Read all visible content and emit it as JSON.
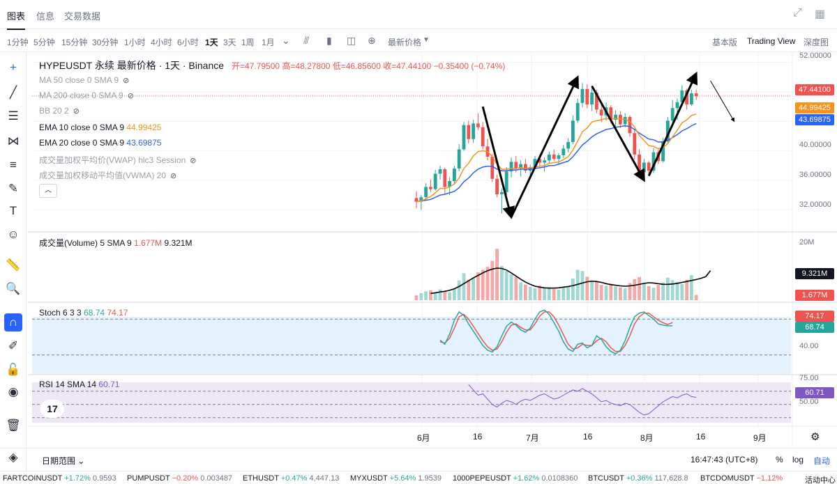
{
  "tabs": [
    "图表",
    "信息",
    "交易数据"
  ],
  "toolbar": {
    "timeframes": [
      "1分钟",
      "5分钟",
      "15分钟",
      "30分钟",
      "1小时",
      "4小时",
      "6小时",
      "1天",
      "3天",
      "1周",
      "1月"
    ],
    "active_timeframe": "1天",
    "price_type": "最新价格",
    "views": [
      "基本版",
      "Trading View",
      "深度图"
    ],
    "active_view": "Trading View"
  },
  "symbol": {
    "title": "HYPEUSDT 永续 最新价格 · 1天 · Binance",
    "open": "开=47.79500",
    "high": "高=48.27800",
    "low": "低=46.85600",
    "close": "收=47.44100",
    "change": "−0.35400 (−0.74%)"
  },
  "indicators": [
    {
      "label": "MA 50 close 0 SMA 9",
      "value": ""
    },
    {
      "label": "MA 200 close 0 SMA 9",
      "value": ""
    },
    {
      "label": "BB 20 2",
      "value": ""
    },
    {
      "label": "EMA 10 close 0 SMA 9",
      "value": "44.99425"
    },
    {
      "label": "EMA 20 close 0 SMA 9",
      "value": "43.69875"
    },
    {
      "label": "成交量加权平均价(VWAP) hlc3 Session",
      "value": ""
    },
    {
      "label": "成交量加权移动平均值(VWMA) 20",
      "value": ""
    }
  ],
  "price_axis": {
    "labels": [
      "52.00000",
      "48.00000",
      "44.00000",
      "40.00000",
      "36.00000",
      "32.00000"
    ]
  },
  "price_tags": {
    "last": "47.44100",
    "ema10": "44.99425",
    "ema20": "43.69875"
  },
  "volume_pane": {
    "label": "成交量(Volume)",
    "params": "5 SMA 9",
    "val1": "1.677M",
    "val2": "9.321M",
    "axis_top": "20M",
    "tag_sma": "9.321M",
    "tag_vol": "1.677M"
  },
  "stoch_pane": {
    "label": "Stoch 6 3 3",
    "k": "68.74",
    "d": "74.17",
    "axis_mid": "40.00",
    "tag_d": "74.17",
    "tag_k": "68.74"
  },
  "rsi_pane": {
    "label": "RSI 14 SMA 14",
    "value": "60.71",
    "axis_top": "75.00",
    "axis_mid": "50.00",
    "tag": "60.71"
  },
  "x_axis": [
    "6月",
    "16",
    "7月",
    "16",
    "8月",
    "16",
    "9月"
  ],
  "bottom": {
    "date_range": "日期范围",
    "time": "16:47:43 (UTC+8)",
    "percent": "%",
    "log": "log",
    "auto": "自动"
  },
  "tickers": [
    {
      "name": "FARTCOINUSDT",
      "chg": "+1.72%",
      "dir": "up",
      "px": "0.9593"
    },
    {
      "name": "PUMPUSDT",
      "chg": "−0.20%",
      "dir": "dn",
      "px": "0.003487"
    },
    {
      "name": "ETHUSDT",
      "chg": "+0.47%",
      "dir": "up",
      "px": "4,447.13"
    },
    {
      "name": "MYXUSDT",
      "chg": "+5.64%",
      "dir": "up",
      "px": "1.9539"
    },
    {
      "name": "1000PEPEUSDT",
      "chg": "+1.62%",
      "dir": "up",
      "px": "0.0108360"
    },
    {
      "name": "BTCUSDT",
      "chg": "+0.36%",
      "dir": "up",
      "px": "117,628.8"
    },
    {
      "name": "BTCDOMUSDT",
      "chg": "−1.12%",
      "dir": "dn",
      "px": ""
    },
    {
      "name": "活动中心",
      "chg": "",
      "dir": "up",
      "px": ""
    }
  ],
  "colors": {
    "up": "#26a69a",
    "down": "#ef5350",
    "ema10": "#f7931a",
    "ema20": "#2962ff",
    "stoch_k": "#26a69a",
    "stoch_d": "#ef5350",
    "rsi": "#7e57c2",
    "last_price": "#ef5350"
  },
  "chart_data": {
    "type": "candlestick",
    "period": "1D",
    "x_range": [
      "2025-05-23",
      "2025-08-15"
    ],
    "ylim": [
      29,
      53
    ],
    "candles": [
      [
        33.6,
        34.5,
        32.2,
        33.1
      ],
      [
        33.1,
        34.0,
        32.0,
        33.7
      ],
      [
        33.7,
        35.6,
        33.2,
        35.1
      ],
      [
        35.1,
        36.1,
        34.4,
        34.8
      ],
      [
        34.8,
        37.4,
        34.6,
        36.9
      ],
      [
        36.9,
        38.0,
        36.1,
        37.5
      ],
      [
        37.5,
        37.7,
        34.2,
        35.1
      ],
      [
        35.1,
        36.4,
        34.0,
        35.9
      ],
      [
        35.9,
        38.0,
        35.5,
        37.6
      ],
      [
        37.6,
        40.9,
        37.2,
        40.2
      ],
      [
        40.2,
        43.9,
        40.0,
        43.5
      ],
      [
        43.5,
        44.1,
        41.0,
        41.6
      ],
      [
        41.6,
        44.2,
        41.1,
        43.7
      ],
      [
        43.7,
        45.1,
        42.8,
        43.2
      ],
      [
        43.2,
        43.9,
        40.2,
        40.6
      ],
      [
        40.6,
        41.6,
        38.7,
        39.2
      ],
      [
        39.2,
        39.6,
        35.8,
        36.2
      ],
      [
        36.2,
        36.8,
        33.7,
        34.1
      ],
      [
        34.1,
        34.9,
        31.5,
        34.4
      ],
      [
        34.4,
        37.8,
        34.0,
        37.2
      ],
      [
        37.2,
        39.1,
        36.4,
        38.5
      ],
      [
        38.5,
        39.3,
        37.1,
        37.6
      ],
      [
        37.6,
        38.7,
        36.5,
        38.2
      ],
      [
        38.2,
        38.9,
        37.0,
        37.3
      ],
      [
        37.3,
        38.1,
        36.4,
        37.8
      ],
      [
        37.8,
        39.3,
        37.6,
        38.9
      ],
      [
        38.9,
        39.5,
        37.9,
        38.4
      ],
      [
        38.4,
        39.1,
        37.2,
        38.7
      ],
      [
        38.7,
        39.9,
        38.3,
        39.5
      ],
      [
        39.5,
        40.2,
        38.6,
        38.9
      ],
      [
        38.9,
        39.7,
        38.1,
        39.4
      ],
      [
        39.4,
        40.8,
        39.0,
        40.3
      ],
      [
        40.3,
        41.7,
        39.8,
        41.2
      ],
      [
        41.2,
        44.8,
        40.9,
        44.1
      ],
      [
        44.1,
        47.1,
        43.8,
        46.5
      ],
      [
        46.5,
        49.2,
        45.9,
        48.4
      ],
      [
        48.4,
        49.0,
        45.8,
        46.3
      ],
      [
        46.3,
        48.6,
        45.4,
        47.9
      ],
      [
        47.9,
        48.3,
        45.1,
        45.6
      ],
      [
        45.6,
        46.4,
        43.9,
        44.8
      ],
      [
        44.8,
        46.6,
        44.1,
        45.9
      ],
      [
        45.9,
        46.2,
        43.7,
        44.2
      ],
      [
        44.2,
        45.5,
        43.3,
        44.9
      ],
      [
        44.9,
        45.4,
        43.1,
        43.6
      ],
      [
        43.6,
        45.1,
        43.2,
        44.6
      ],
      [
        44.6,
        44.8,
        41.9,
        42.4
      ],
      [
        42.4,
        42.9,
        38.8,
        39.5
      ],
      [
        39.5,
        40.2,
        36.4,
        37.1
      ],
      [
        37.1,
        38.9,
        36.4,
        38.4
      ],
      [
        38.4,
        38.6,
        36.7,
        37.3
      ],
      [
        37.3,
        40.4,
        37.0,
        39.8
      ],
      [
        39.8,
        40.2,
        38.2,
        38.6
      ],
      [
        38.6,
        41.8,
        38.4,
        41.3
      ],
      [
        41.3,
        44.6,
        41.0,
        44.1
      ],
      [
        44.1,
        46.9,
        43.7,
        45.8
      ],
      [
        45.8,
        47.1,
        44.2,
        46.6
      ],
      [
        46.6,
        48.9,
        46.1,
        48.2
      ],
      [
        48.2,
        48.4,
        45.6,
        46.3
      ],
      [
        46.3,
        48.3,
        46.1,
        47.8
      ],
      [
        47.8,
        48.3,
        46.9,
        47.4
      ]
    ],
    "ema10": [
      33.1,
      33.2,
      33.5,
      33.8,
      34.3,
      34.9,
      34.9,
      35.1,
      35.5,
      36.3,
      37.6,
      38.3,
      39.3,
      39.9,
      40.0,
      39.9,
      39.2,
      38.2,
      37.5,
      37.5,
      37.6,
      37.6,
      37.7,
      37.6,
      37.7,
      37.8,
      37.9,
      38.0,
      38.3,
      38.4,
      38.5,
      38.8,
      39.2,
      40.1,
      41.3,
      42.6,
      43.1,
      43.9,
      44.1,
      44.2,
      44.4,
      44.3,
      44.4,
      44.3,
      44.3,
      44.0,
      43.2,
      42.1,
      41.4,
      40.7,
      40.6,
      40.3,
      40.4,
      41.0,
      41.9,
      42.8,
      43.8,
      44.2,
      44.8,
      45.0
    ],
    "ema20": [
      33.1,
      33.2,
      33.3,
      33.4,
      33.7,
      34.0,
      34.1,
      34.3,
      34.5,
      35.0,
      35.8,
      36.3,
      37.0,
      37.5,
      37.8,
      37.9,
      37.9,
      37.5,
      37.3,
      37.3,
      37.4,
      37.4,
      37.5,
      37.5,
      37.5,
      37.6,
      37.7,
      37.8,
      38.0,
      38.0,
      38.2,
      38.4,
      38.6,
      39.2,
      40.0,
      40.8,
      41.3,
      41.9,
      42.3,
      42.6,
      42.9,
      43.0,
      43.2,
      43.3,
      43.4,
      43.3,
      42.9,
      42.4,
      42.0,
      41.6,
      41.5,
      41.2,
      41.2,
      41.4,
      41.8,
      42.2,
      42.7,
      43.0,
      43.4,
      43.7
    ],
    "arrows": [
      {
        "from": [
          14,
          46.0
        ],
        "to": [
          20,
          31.0
        ]
      },
      {
        "from": [
          20,
          31.0
        ],
        "to": [
          34,
          50.0
        ]
      },
      {
        "from": [
          37,
          48.8
        ],
        "to": [
          48,
          36.0
        ]
      },
      {
        "from": [
          49,
          36.6
        ],
        "to": [
          59,
          50.5
        ]
      },
      {
        "from": [
          62,
          49.5
        ],
        "to": [
          67,
          44.0
        ]
      }
    ],
    "volume": [
      1.5,
      2.2,
      2.8,
      3.1,
      2.6,
      3.4,
      2.9,
      2.5,
      3.6,
      6.2,
      8.5,
      6.4,
      7.1,
      8.8,
      9.6,
      10.5,
      12.4,
      16.2,
      10.8,
      9.2,
      8.1,
      7.3,
      5.6,
      4.9,
      4.2,
      3.8,
      4.6,
      3.9,
      4.1,
      3.5,
      3.3,
      4.0,
      4.4,
      6.8,
      9.6,
      9.2,
      7.4,
      6.1,
      5.9,
      4.8,
      4.5,
      5.2,
      4.3,
      4.0,
      3.7,
      5.4,
      6.6,
      7.3,
      5.1,
      4.4,
      3.9,
      4.8,
      5.6,
      7.1,
      6.3,
      5.8,
      5.1,
      6.4,
      7.9,
      1.677
    ],
    "volume_sma": [
      2.1,
      2.3,
      2.6,
      2.8,
      3.1,
      3.6,
      4.3,
      5.2,
      6.1,
      7.0,
      7.8,
      8.6,
      9.3,
      9.8,
      10.1,
      10.0,
      9.5,
      8.6,
      7.6,
      6.6,
      5.7,
      5.0,
      4.4,
      4.1,
      3.9,
      3.8,
      3.8,
      3.9,
      4.1,
      4.3,
      4.6,
      5.0,
      5.4,
      5.8,
      6.0,
      5.9,
      5.6,
      5.2,
      4.9,
      4.7,
      4.5,
      4.4,
      4.5,
      4.7,
      5.0,
      5.3,
      5.5,
      5.4,
      5.2,
      5.0,
      5.0,
      5.1,
      5.3,
      5.6,
      5.9,
      6.2,
      6.5,
      6.9,
      7.4,
      9.321
    ],
    "stoch_k": [
      45,
      38,
      55,
      78,
      92,
      86,
      72,
      60,
      48,
      36,
      28,
      25,
      34,
      52,
      68,
      75,
      70,
      62,
      58,
      65,
      80,
      92,
      95,
      88,
      74,
      60,
      42,
      30,
      26,
      38,
      40,
      32,
      36,
      52,
      46,
      34,
      26,
      22,
      28,
      44,
      66,
      84,
      90,
      92,
      86,
      80,
      72,
      70,
      69,
      68.74
    ],
    "stoch_d": [
      42,
      40,
      48,
      65,
      84,
      88,
      80,
      68,
      56,
      44,
      34,
      28,
      30,
      42,
      58,
      70,
      72,
      66,
      62,
      62,
      72,
      85,
      92,
      92,
      84,
      70,
      54,
      38,
      30,
      32,
      38,
      36,
      36,
      44,
      48,
      42,
      32,
      26,
      26,
      36,
      52,
      72,
      84,
      90,
      90,
      84,
      78,
      74,
      71,
      74.17
    ],
    "stoch_levels": [
      80,
      20
    ],
    "rsi": [
      80,
      72,
      64,
      66,
      58,
      50,
      46,
      52,
      56,
      54,
      50,
      55,
      58,
      56,
      60,
      64,
      66,
      62,
      58,
      60,
      64,
      68,
      72,
      70,
      74,
      70,
      66,
      60,
      54,
      56,
      52,
      50,
      48,
      52,
      50,
      44,
      38,
      34,
      36,
      42,
      48,
      54,
      58,
      62,
      60,
      64,
      66,
      62,
      60.71
    ],
    "rsi_levels": [
      70,
      50,
      30
    ]
  }
}
